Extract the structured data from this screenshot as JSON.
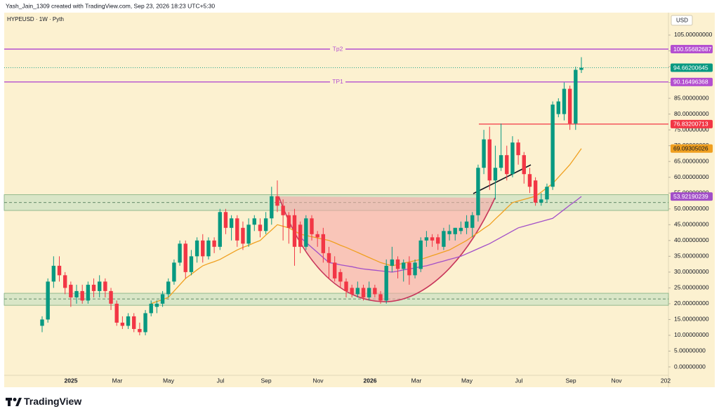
{
  "header": {
    "credit": "Yash_Jain_1309 created with TradingView.com, Sep 23, 2026 18:23 UTC+5:30",
    "symbol": "HYPEUSD · 1W · Pyth",
    "currency": "USD"
  },
  "footer": {
    "brand": "TradingView"
  },
  "chart_data": {
    "type": "candlestick",
    "up_color": "#089981",
    "down_color": "#f23645",
    "ylim": [
      -2.66,
      112.1
    ],
    "yticks": [
      {
        "value": 0,
        "label": "0.00000000"
      },
      {
        "value": 5,
        "label": "5.00000000"
      },
      {
        "value": 10,
        "label": "10.00000000"
      },
      {
        "value": 15,
        "label": "15.00000000"
      },
      {
        "value": 20,
        "label": "20.00000000"
      },
      {
        "value": 25,
        "label": "25.00000000"
      },
      {
        "value": 30,
        "label": "30.00000000"
      },
      {
        "value": 35,
        "label": "35.00000000"
      },
      {
        "value": 40,
        "label": "40.00000000"
      },
      {
        "value": 45,
        "label": "45.00000000"
      },
      {
        "value": 50,
        "label": "50.00000000"
      },
      {
        "value": 55,
        "label": "55.00000000"
      },
      {
        "value": 60,
        "label": "60.00000000"
      },
      {
        "value": 65,
        "label": "65.00000000"
      },
      {
        "value": 70,
        "label": "70.00000000"
      },
      {
        "value": 75,
        "label": "75.00000000"
      },
      {
        "value": 80,
        "label": "80.00000000"
      },
      {
        "value": 85,
        "label": "85.00000000"
      },
      {
        "value": 90,
        "label": "90.00000000"
      },
      {
        "value": 95,
        "label": "95.00000000"
      },
      {
        "value": 100,
        "label": "100.00000000"
      },
      {
        "value": 105,
        "label": "105.00000000"
      }
    ],
    "xtick_labels": [
      "2025",
      "Mar",
      "May",
      "Jul",
      "Sep",
      "Nov",
      "2026",
      "Mar",
      "May",
      "Jul",
      "Sep",
      "Nov",
      "202"
    ],
    "candles": [
      [
        13,
        16,
        11,
        15
      ],
      [
        15,
        28,
        14,
        27
      ],
      [
        27,
        35,
        25,
        32
      ],
      [
        32,
        35,
        27,
        29
      ],
      [
        29,
        30,
        23,
        25
      ],
      [
        26,
        27,
        19,
        22
      ],
      [
        22,
        26,
        20,
        24
      ],
      [
        24,
        26,
        20,
        21
      ],
      [
        21,
        27,
        20,
        26
      ],
      [
        26,
        28,
        22,
        24
      ],
      [
        24,
        29,
        22,
        27
      ],
      [
        27,
        28,
        22,
        24
      ],
      [
        24,
        25,
        18,
        20
      ],
      [
        20,
        21,
        13,
        14
      ],
      [
        14,
        16,
        12,
        13
      ],
      [
        13,
        17,
        12,
        16
      ],
      [
        16,
        17,
        11,
        12
      ],
      [
        12,
        14,
        10,
        11
      ],
      [
        11,
        18,
        10,
        17
      ],
      [
        17,
        21,
        16,
        20
      ],
      [
        19,
        21,
        17,
        20
      ],
      [
        20,
        24,
        19,
        23
      ],
      [
        23,
        28,
        22,
        27
      ],
      [
        27,
        34,
        26,
        33
      ],
      [
        33,
        40,
        32,
        39
      ],
      [
        39,
        40,
        28,
        30
      ],
      [
        30,
        37,
        29,
        35
      ],
      [
        35,
        41,
        33,
        40
      ],
      [
        40,
        42,
        33,
        35
      ],
      [
        35,
        41,
        34,
        40
      ],
      [
        40,
        41,
        36,
        38
      ],
      [
        38,
        50,
        37,
        49
      ],
      [
        49,
        50,
        42,
        44
      ],
      [
        44,
        48,
        40,
        47
      ],
      [
        47,
        48,
        38,
        40
      ],
      [
        44,
        46,
        37,
        39
      ],
      [
        39,
        47,
        38,
        45
      ],
      [
        45,
        48,
        43,
        47
      ],
      [
        45,
        47,
        41,
        43
      ],
      [
        43,
        49,
        42,
        47
      ],
      [
        47,
        57,
        45,
        54
      ],
      [
        54,
        59,
        49,
        51
      ],
      [
        51,
        53,
        40,
        48
      ],
      [
        48,
        49,
        39,
        44
      ],
      [
        48,
        50,
        32,
        38
      ],
      [
        45,
        46,
        36,
        38
      ],
      [
        38,
        48,
        37,
        47
      ],
      [
        47,
        48,
        40,
        42
      ],
      [
        42,
        43,
        38,
        41
      ],
      [
        42,
        44,
        33,
        36
      ],
      [
        36,
        38,
        28,
        33
      ],
      [
        33,
        35,
        27,
        28
      ],
      [
        30,
        31,
        25,
        27
      ],
      [
        27,
        28,
        22,
        24
      ],
      [
        25,
        26,
        22,
        23
      ],
      [
        23,
        27,
        22,
        25
      ],
      [
        25,
        26,
        21,
        22
      ],
      [
        22,
        27,
        21,
        25
      ],
      [
        25,
        26,
        22,
        23
      ],
      [
        23,
        24,
        20,
        21
      ],
      [
        21,
        34,
        20,
        32
      ],
      [
        32,
        38,
        30,
        34
      ],
      [
        34,
        35,
        28,
        31
      ],
      [
        31,
        34,
        27,
        33
      ],
      [
        33,
        35,
        26,
        29
      ],
      [
        29,
        34,
        28,
        33
      ],
      [
        31,
        41,
        30,
        40
      ],
      [
        40,
        43,
        38,
        41
      ],
      [
        41,
        42,
        38,
        40
      ],
      [
        41,
        42,
        37,
        39
      ],
      [
        38,
        44,
        37,
        43
      ],
      [
        42,
        45,
        40,
        43
      ],
      [
        42,
        44,
        40,
        44
      ],
      [
        43,
        46,
        42,
        44
      ],
      [
        44,
        48,
        42,
        46
      ],
      [
        44,
        49,
        41,
        48
      ],
      [
        48,
        64,
        46,
        63
      ],
      [
        63,
        75,
        61,
        72
      ],
      [
        72,
        76,
        56,
        59
      ],
      [
        59,
        70,
        53,
        63
      ],
      [
        63,
        77,
        62,
        67
      ],
      [
        67,
        70,
        59,
        61
      ],
      [
        61,
        73,
        60,
        71
      ],
      [
        71,
        72,
        64,
        67
      ],
      [
        67,
        68,
        58,
        61
      ],
      [
        61,
        63,
        55,
        57
      ],
      [
        59,
        60,
        51,
        52
      ],
      [
        52,
        55,
        51,
        53
      ],
      [
        53,
        58,
        52,
        57
      ],
      [
        57,
        84,
        56,
        83
      ],
      [
        80,
        85,
        79,
        84
      ],
      [
        80,
        90,
        78,
        88
      ],
      [
        88,
        89,
        75,
        77
      ],
      [
        77,
        95,
        75,
        94
      ],
      [
        94,
        98,
        93,
        94.66200645
      ]
    ],
    "series": [
      {
        "color": "#f0a020",
        "values": [
          null,
          null,
          null,
          null,
          null,
          null,
          null,
          null,
          null,
          null,
          null,
          null,
          null,
          null,
          null,
          null,
          null,
          null,
          null,
          20,
          20.7,
          21.3,
          22,
          24,
          26,
          28,
          29.3,
          30.7,
          32,
          32.7,
          33.3,
          34,
          35,
          36,
          37,
          37.8,
          38.5,
          39.3,
          40,
          41.7,
          43.3,
          45,
          44.5,
          44,
          43,
          42,
          41.6,
          41.2,
          40.8,
          40.4,
          40,
          39.3,
          38.5,
          37.8,
          37,
          36.2,
          35.4,
          34.6,
          33.8,
          33,
          32.5,
          32,
          32.4,
          32.8,
          33.2,
          33.6,
          34,
          34.6,
          35.2,
          35.8,
          36.4,
          37,
          38,
          39,
          40,
          41.3,
          42.5,
          43.8,
          45,
          46.8,
          48.5,
          50.3,
          52,
          52.5,
          53,
          53.5,
          54,
          55.3,
          56.7,
          58,
          60,
          62,
          64,
          66.5,
          69.09305026
        ]
      },
      {
        "color": "#a24fc8",
        "values": [
          null,
          null,
          null,
          null,
          null,
          null,
          null,
          null,
          null,
          null,
          null,
          null,
          null,
          null,
          null,
          null,
          null,
          null,
          null,
          null,
          null,
          null,
          null,
          null,
          null,
          null,
          null,
          null,
          null,
          null,
          null,
          null,
          null,
          null,
          null,
          null,
          null,
          null,
          null,
          null,
          null,
          null,
          null,
          null,
          null,
          41,
          39.4,
          37.8,
          36.2,
          34.6,
          33,
          32.7,
          32.3,
          32,
          31.7,
          31.3,
          31,
          30.8,
          30.6,
          30.4,
          30.2,
          30,
          30.3,
          30.7,
          31,
          31.3,
          31.7,
          32,
          32.5,
          33,
          33.5,
          34,
          34.5,
          35,
          35.8,
          36.6,
          37.4,
          38.2,
          39,
          40,
          41,
          42,
          43,
          44,
          44.5,
          45,
          45.5,
          46,
          46.5,
          47,
          48.4,
          49.8,
          51.2,
          52.5,
          53.92190239
        ]
      }
    ],
    "targets": [
      {
        "label": "Tp2",
        "value": 100.55682687,
        "color": "#b44fd0"
      },
      {
        "label": "TP1",
        "value": 90.16496368,
        "color": "#b44fd0"
      }
    ],
    "resistance": {
      "value": 76.83200713,
      "color": "#f23645"
    },
    "zones": [
      [
        49.5,
        54.5
      ],
      [
        19.5,
        23.3
      ]
    ],
    "zone_levels": [
      52,
      21.5
    ]
  }
}
